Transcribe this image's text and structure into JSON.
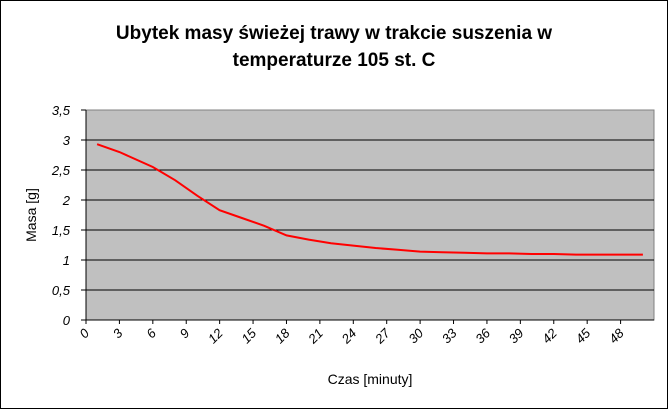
{
  "chart_data": {
    "type": "line",
    "title": "Ubytek masy świeżej trawy w trakcie suszenia w temperaturze 105 st. C",
    "title_lines": [
      "Ubytek masy świeżej trawy w trakcie suszenia w",
      "temperaturze 105 st. C"
    ],
    "xlabel": "Czas [minuty]",
    "ylabel": "Masa [g]",
    "ylim": [
      0,
      3.5
    ],
    "ytick_labels": [
      "0",
      "0,5",
      "1",
      "1,5",
      "2",
      "2,5",
      "3",
      "3,5"
    ],
    "ytick_values": [
      0,
      0.5,
      1,
      1.5,
      2,
      2.5,
      3,
      3.5
    ],
    "xtick_labels": [
      "0",
      "3",
      "6",
      "9",
      "12",
      "15",
      "18",
      "21",
      "24",
      "27",
      "30",
      "33",
      "36",
      "39",
      "42",
      "45",
      "48"
    ],
    "xtick_values": [
      0,
      3,
      6,
      9,
      12,
      15,
      18,
      21,
      24,
      27,
      30,
      33,
      36,
      39,
      42,
      45,
      48
    ],
    "xlim": [
      0,
      51
    ],
    "grid": true,
    "plot_background": "#c0c0c0",
    "series": [
      {
        "color": "#ff0000",
        "x": [
          1,
          3,
          6,
          8,
          10,
          12,
          14,
          16,
          18,
          20,
          22,
          24,
          26,
          28,
          30,
          32,
          34,
          36,
          38,
          40,
          42,
          44,
          46,
          48,
          50
        ],
        "values": [
          2.93,
          2.8,
          2.55,
          2.33,
          2.07,
          1.83,
          1.7,
          1.57,
          1.41,
          1.34,
          1.28,
          1.24,
          1.2,
          1.17,
          1.14,
          1.13,
          1.12,
          1.11,
          1.11,
          1.1,
          1.1,
          1.09,
          1.09,
          1.09,
          1.09
        ]
      }
    ]
  }
}
